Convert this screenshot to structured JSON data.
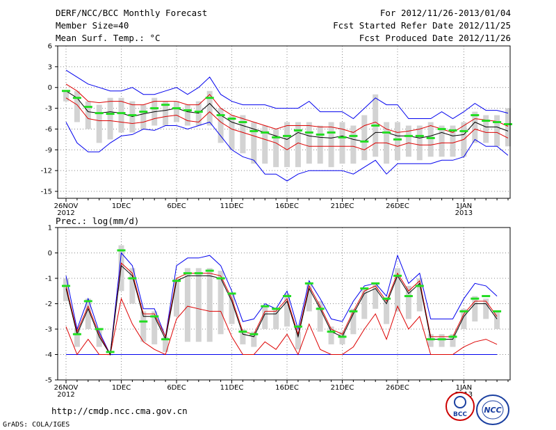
{
  "header": {
    "title": "DERF/NCC/BCC Monthly Forecast",
    "member_size": "Member Size=40",
    "variable1": "Mean Surf. Temp.: °C",
    "forecast_for": "For 2012/11/26-2013/01/04",
    "fcst_started": "Fcst Started Refer Date 2012/11/25",
    "fcst_produced": "Fcst Produced Date 2012/11/26"
  },
  "footer": {
    "url": "http://cmdp.ncc.cma.gov.cn",
    "grads_credit": "GrADS: COLA/IGES",
    "bcc_logo_text": "BCC",
    "ncc_logo_text": "NCC"
  },
  "colors": {
    "box": "#d3d3d3",
    "max_min": "#0000ee",
    "spread": "#dd0000",
    "mean": "#000000",
    "marker": "#22dd22"
  },
  "chart_data": [
    {
      "type": "line",
      "title": "Mean Surf. Temp.: °C",
      "ylim": [
        -16,
        6
      ],
      "yticks": [
        6,
        3,
        0,
        -3,
        -6,
        -9,
        -12,
        -15
      ],
      "xtick_labels": [
        {
          "day": 0,
          "label": "26NOV",
          "sub": "2012"
        },
        {
          "day": 5,
          "label": "1DEC"
        },
        {
          "day": 10,
          "label": "6DEC"
        },
        {
          "day": 15,
          "label": "11DEC"
        },
        {
          "day": 20,
          "label": "16DEC"
        },
        {
          "day": 25,
          "label": "21DEC"
        },
        {
          "day": 30,
          "label": "26DEC"
        },
        {
          "day": 36,
          "label": "1JAN",
          "sub": "2013"
        }
      ],
      "series": {
        "max": [
          2.5,
          1.5,
          0.5,
          0.0,
          -0.5,
          -0.5,
          0.0,
          -1.0,
          -1.0,
          -0.5,
          0.0,
          -1.0,
          0.0,
          1.5,
          -1.0,
          -2.0,
          -2.5,
          -2.5,
          -2.5,
          -3.0,
          -3.0,
          -3.0,
          -2.0,
          -3.5,
          -3.5,
          -3.5,
          -4.5,
          -3.0,
          -1.5,
          -2.5,
          -2.5,
          -4.5,
          -4.5,
          -4.5,
          -3.5,
          -4.5,
          -3.5,
          -2.3,
          -3.3,
          -3.3,
          -3.7
        ],
        "upper": [
          0.5,
          -0.5,
          -2.0,
          -2.2,
          -2.0,
          -2.0,
          -2.5,
          -2.5,
          -2.0,
          -2.0,
          -2.0,
          -2.5,
          -2.5,
          -1.0,
          -3.0,
          -4.0,
          -4.5,
          -5.0,
          -5.5,
          -6.0,
          -5.5,
          -5.5,
          -5.5,
          -5.7,
          -5.7,
          -6.0,
          -6.5,
          -5.5,
          -5.0,
          -6.0,
          -6.5,
          -6.3,
          -6.0,
          -5.5,
          -6.0,
          -6.5,
          -5.5,
          -4.5,
          -4.7,
          -4.9,
          -5.6
        ],
        "mean": [
          -0.5,
          -1.5,
          -3.5,
          -3.7,
          -3.5,
          -3.7,
          -4.2,
          -3.8,
          -3.5,
          -3.3,
          -3.0,
          -3.5,
          -3.7,
          -2.3,
          -4.0,
          -5.0,
          -5.5,
          -6.0,
          -6.5,
          -7.0,
          -7.5,
          -6.5,
          -7.0,
          -7.2,
          -7.3,
          -7.0,
          -7.5,
          -7.8,
          -6.5,
          -6.5,
          -7.0,
          -7.0,
          -7.3,
          -7.0,
          -6.5,
          -7.0,
          -6.8,
          -5.0,
          -5.7,
          -5.7,
          -6.3
        ],
        "lower": [
          -1.5,
          -2.5,
          -4.5,
          -4.8,
          -4.8,
          -5.0,
          -5.2,
          -5.0,
          -4.5,
          -4.2,
          -4.0,
          -4.8,
          -5.0,
          -3.5,
          -5.0,
          -6.0,
          -6.5,
          -7.0,
          -7.5,
          -8.0,
          -9.0,
          -8.0,
          -8.5,
          -8.5,
          -8.5,
          -8.5,
          -8.5,
          -9.0,
          -8.0,
          -8.0,
          -8.5,
          -8.0,
          -8.3,
          -8.3,
          -8.0,
          -8.0,
          -7.5,
          -6.0,
          -6.5,
          -6.5,
          -7.3
        ],
        "min": [
          -5.0,
          -8.0,
          -9.3,
          -9.3,
          -8.0,
          -7.0,
          -6.8,
          -6.0,
          -6.2,
          -5.5,
          -5.5,
          -6.0,
          -5.5,
          -5.0,
          -7.0,
          -9.0,
          -10.0,
          -10.5,
          -12.5,
          -12.5,
          -13.5,
          -12.5,
          -12.0,
          -12.0,
          -12.0,
          -12.0,
          -12.5,
          -11.5,
          -10.5,
          -12.5,
          -11.0,
          -11.0,
          -11.0,
          -11.0,
          -10.5,
          -10.5,
          -10.0,
          -7.5,
          -8.5,
          -8.5,
          -9.8
        ],
        "box_top": [
          -0.5,
          -0.5,
          -2.0,
          -2.5,
          -1.5,
          -1.5,
          -2.0,
          -2.5,
          -1.5,
          -2.0,
          -2.0,
          -2.5,
          -2.0,
          -0.5,
          -3.0,
          -4.0,
          -4.0,
          -5.0,
          -5.5,
          -6.0,
          -5.0,
          -5.0,
          -5.0,
          -5.5,
          -5.0,
          -5.0,
          -5.5,
          -4.0,
          -1.0,
          -5.0,
          -5.0,
          -5.5,
          -5.5,
          -5.0,
          -5.5,
          -5.5,
          -5.0,
          -3.5,
          -4.0,
          -4.0,
          -3.0
        ],
        "box_bottom": [
          -2.0,
          -5.0,
          -6.0,
          -8.0,
          -7.5,
          -6.5,
          -6.5,
          -6.0,
          -5.5,
          -5.5,
          -5.0,
          -5.5,
          -5.5,
          -5.5,
          -8.0,
          -9.0,
          -9.5,
          -11.0,
          -11.0,
          -11.5,
          -11.5,
          -11.5,
          -11.0,
          -11.0,
          -11.5,
          -11.0,
          -11.0,
          -10.5,
          -10.0,
          -11.0,
          -10.5,
          -10.0,
          -10.5,
          -10.0,
          -10.0,
          -10.0,
          -10.0,
          -8.0,
          -8.0,
          -8.5,
          -8.5
        ],
        "marker": [
          -0.5,
          -1.5,
          -2.8,
          -3.7,
          -3.8,
          -3.7,
          -4.0,
          -3.5,
          -3.0,
          -2.5,
          -3.0,
          -3.3,
          -3.5,
          -1.5,
          -4.0,
          -4.5,
          -5.0,
          -6.3,
          -6.5,
          -7.2,
          -7.0,
          -6.2,
          -6.5,
          -6.8,
          -6.5,
          -7.2,
          -7.0,
          -7.8,
          -5.5,
          -6.5,
          -7.5,
          -7.0,
          -7.0,
          -7.3,
          -6.0,
          -6.2,
          -6.3,
          -4.0,
          -4.8,
          -5.0,
          -5.3
        ]
      }
    },
    {
      "type": "line",
      "title": "Prec.: log(mm/d)",
      "ylim": [
        -5,
        1
      ],
      "yticks": [
        1,
        0,
        -1,
        -2,
        -3,
        -4,
        -5
      ],
      "xtick_labels": [
        {
          "day": 0,
          "label": "26NOV",
          "sub": "2012"
        },
        {
          "day": 5,
          "label": "1DEC"
        },
        {
          "day": 10,
          "label": "6DEC"
        },
        {
          "day": 15,
          "label": "11DEC"
        },
        {
          "day": 20,
          "label": "16DEC"
        },
        {
          "day": 25,
          "label": "21DEC"
        },
        {
          "day": 30,
          "label": "26DEC"
        },
        {
          "day": 36,
          "label": "1JAN",
          "sub": "2013"
        }
      ],
      "series": {
        "max": [
          -0.9,
          -3.0,
          -1.8,
          -3.1,
          -4.0,
          0.0,
          -0.5,
          -2.2,
          -2.2,
          -3.3,
          -0.5,
          -0.2,
          -0.2,
          -0.1,
          -0.5,
          -1.5,
          -2.7,
          -2.6,
          -2.0,
          -2.2,
          -1.5,
          -3.0,
          -1.1,
          -1.8,
          -2.6,
          -2.7,
          -1.9,
          -1.3,
          -1.2,
          -1.7,
          -0.1,
          -1.2,
          -0.8,
          -2.6,
          -2.6,
          -2.6,
          -1.8,
          -1.2,
          -1.3,
          -1.7
        ],
        "upper": [
          -1.3,
          -3.1,
          -2.1,
          -3.2,
          -4.0,
          -0.4,
          -0.8,
          -2.4,
          -2.4,
          -3.3,
          -1.0,
          -0.8,
          -0.8,
          -0.8,
          -0.9,
          -1.8,
          -3.1,
          -3.2,
          -2.3,
          -2.3,
          -1.8,
          -3.2,
          -1.3,
          -2.1,
          -3.0,
          -3.2,
          -2.3,
          -1.5,
          -1.3,
          -1.9,
          -0.8,
          -1.5,
          -1.1,
          -3.3,
          -3.3,
          -3.3,
          -2.4,
          -1.9,
          -1.9,
          -2.5
        ],
        "mean": [
          -1.4,
          -3.2,
          -2.2,
          -3.3,
          -4.0,
          -0.5,
          -0.9,
          -2.5,
          -2.5,
          -3.4,
          -1.1,
          -0.9,
          -0.9,
          -0.9,
          -1.0,
          -1.9,
          -3.2,
          -3.3,
          -2.4,
          -2.4,
          -1.9,
          -3.3,
          -1.4,
          -2.2,
          -3.1,
          -3.3,
          -2.4,
          -1.6,
          -1.4,
          -2.0,
          -0.9,
          -1.6,
          -1.2,
          -3.4,
          -3.4,
          -3.4,
          -2.5,
          -2.0,
          -2.0,
          -2.6
        ],
        "lower": [
          -2.9,
          -4.0,
          -3.4,
          -4.0,
          -4.0,
          -1.8,
          -2.8,
          -3.5,
          -3.8,
          -4.0,
          -2.6,
          -2.1,
          -2.2,
          -2.3,
          -2.3,
          -3.3,
          -4.0,
          -4.0,
          -3.5,
          -3.8,
          -3.2,
          -4.0,
          -2.8,
          -3.8,
          -4.0,
          -4.0,
          -3.7,
          -3.0,
          -2.4,
          -3.4,
          -2.1,
          -3.0,
          -2.5,
          -4.0,
          -4.0,
          -4.0,
          -3.7,
          -3.5,
          -3.4,
          -3.6
        ],
        "min": [
          -4.0,
          -4.0,
          -4.0,
          -4.0,
          -4.0,
          -4.0,
          -4.0,
          -4.0,
          -4.0,
          -4.0,
          -4.0,
          -4.0,
          -4.0,
          -4.0,
          -4.0,
          -4.0,
          -4.0,
          -4.0,
          -4.0,
          -4.0,
          -4.0,
          -4.0,
          -4.0,
          -4.0,
          -4.0,
          -4.0,
          -4.0,
          -4.0,
          -4.0,
          -4.0,
          -4.0,
          -4.0,
          -4.0,
          -4.0,
          -4.0,
          -4.0,
          -4.0,
          -4.0,
          -4.0,
          -4.0
        ],
        "box_top": [
          -1.0,
          -3.0,
          -1.8,
          -3.0,
          -4.0,
          0.3,
          -0.6,
          -2.3,
          -2.3,
          -3.3,
          -1.0,
          -0.6,
          -0.6,
          -0.6,
          -0.7,
          -1.6,
          -3.0,
          -3.1,
          -2.1,
          -2.2,
          -1.6,
          -3.1,
          -1.2,
          -1.9,
          -2.9,
          -3.1,
          -2.2,
          -1.4,
          -1.2,
          -1.8,
          -0.6,
          -1.3,
          -1.0,
          -3.2,
          -3.2,
          -3.2,
          -2.2,
          -1.7,
          -1.8,
          -2.3
        ],
        "box_bottom": [
          -1.9,
          -3.7,
          -3.0,
          -3.7,
          -4.0,
          -1.5,
          -2.0,
          -3.5,
          -3.6,
          -3.9,
          -2.5,
          -3.5,
          -3.5,
          -3.5,
          -3.2,
          -2.8,
          -3.6,
          -3.7,
          -3.0,
          -3.0,
          -2.9,
          -3.8,
          -2.3,
          -3.1,
          -3.6,
          -3.6,
          -3.2,
          -2.6,
          -2.2,
          -2.8,
          -2.3,
          -2.6,
          -2.3,
          -3.7,
          -3.7,
          -3.7,
          -3.0,
          -2.7,
          -2.6,
          -3.0
        ],
        "marker": [
          -1.3,
          -3.2,
          -1.9,
          -3.0,
          -3.9,
          0.1,
          -1.0,
          -2.7,
          -2.5,
          -3.4,
          -1.1,
          -0.8,
          -0.8,
          -0.7,
          -1.0,
          -1.6,
          -3.1,
          -3.2,
          -2.1,
          -2.2,
          -1.7,
          -2.9,
          -1.2,
          -2.2,
          -3.1,
          -3.3,
          -2.3,
          -1.4,
          -1.2,
          -1.8,
          -0.9,
          -1.7,
          -1.3,
          -3.4,
          -3.4,
          -3.3,
          -2.3,
          -1.8,
          -1.7,
          -2.3
        ]
      }
    }
  ]
}
